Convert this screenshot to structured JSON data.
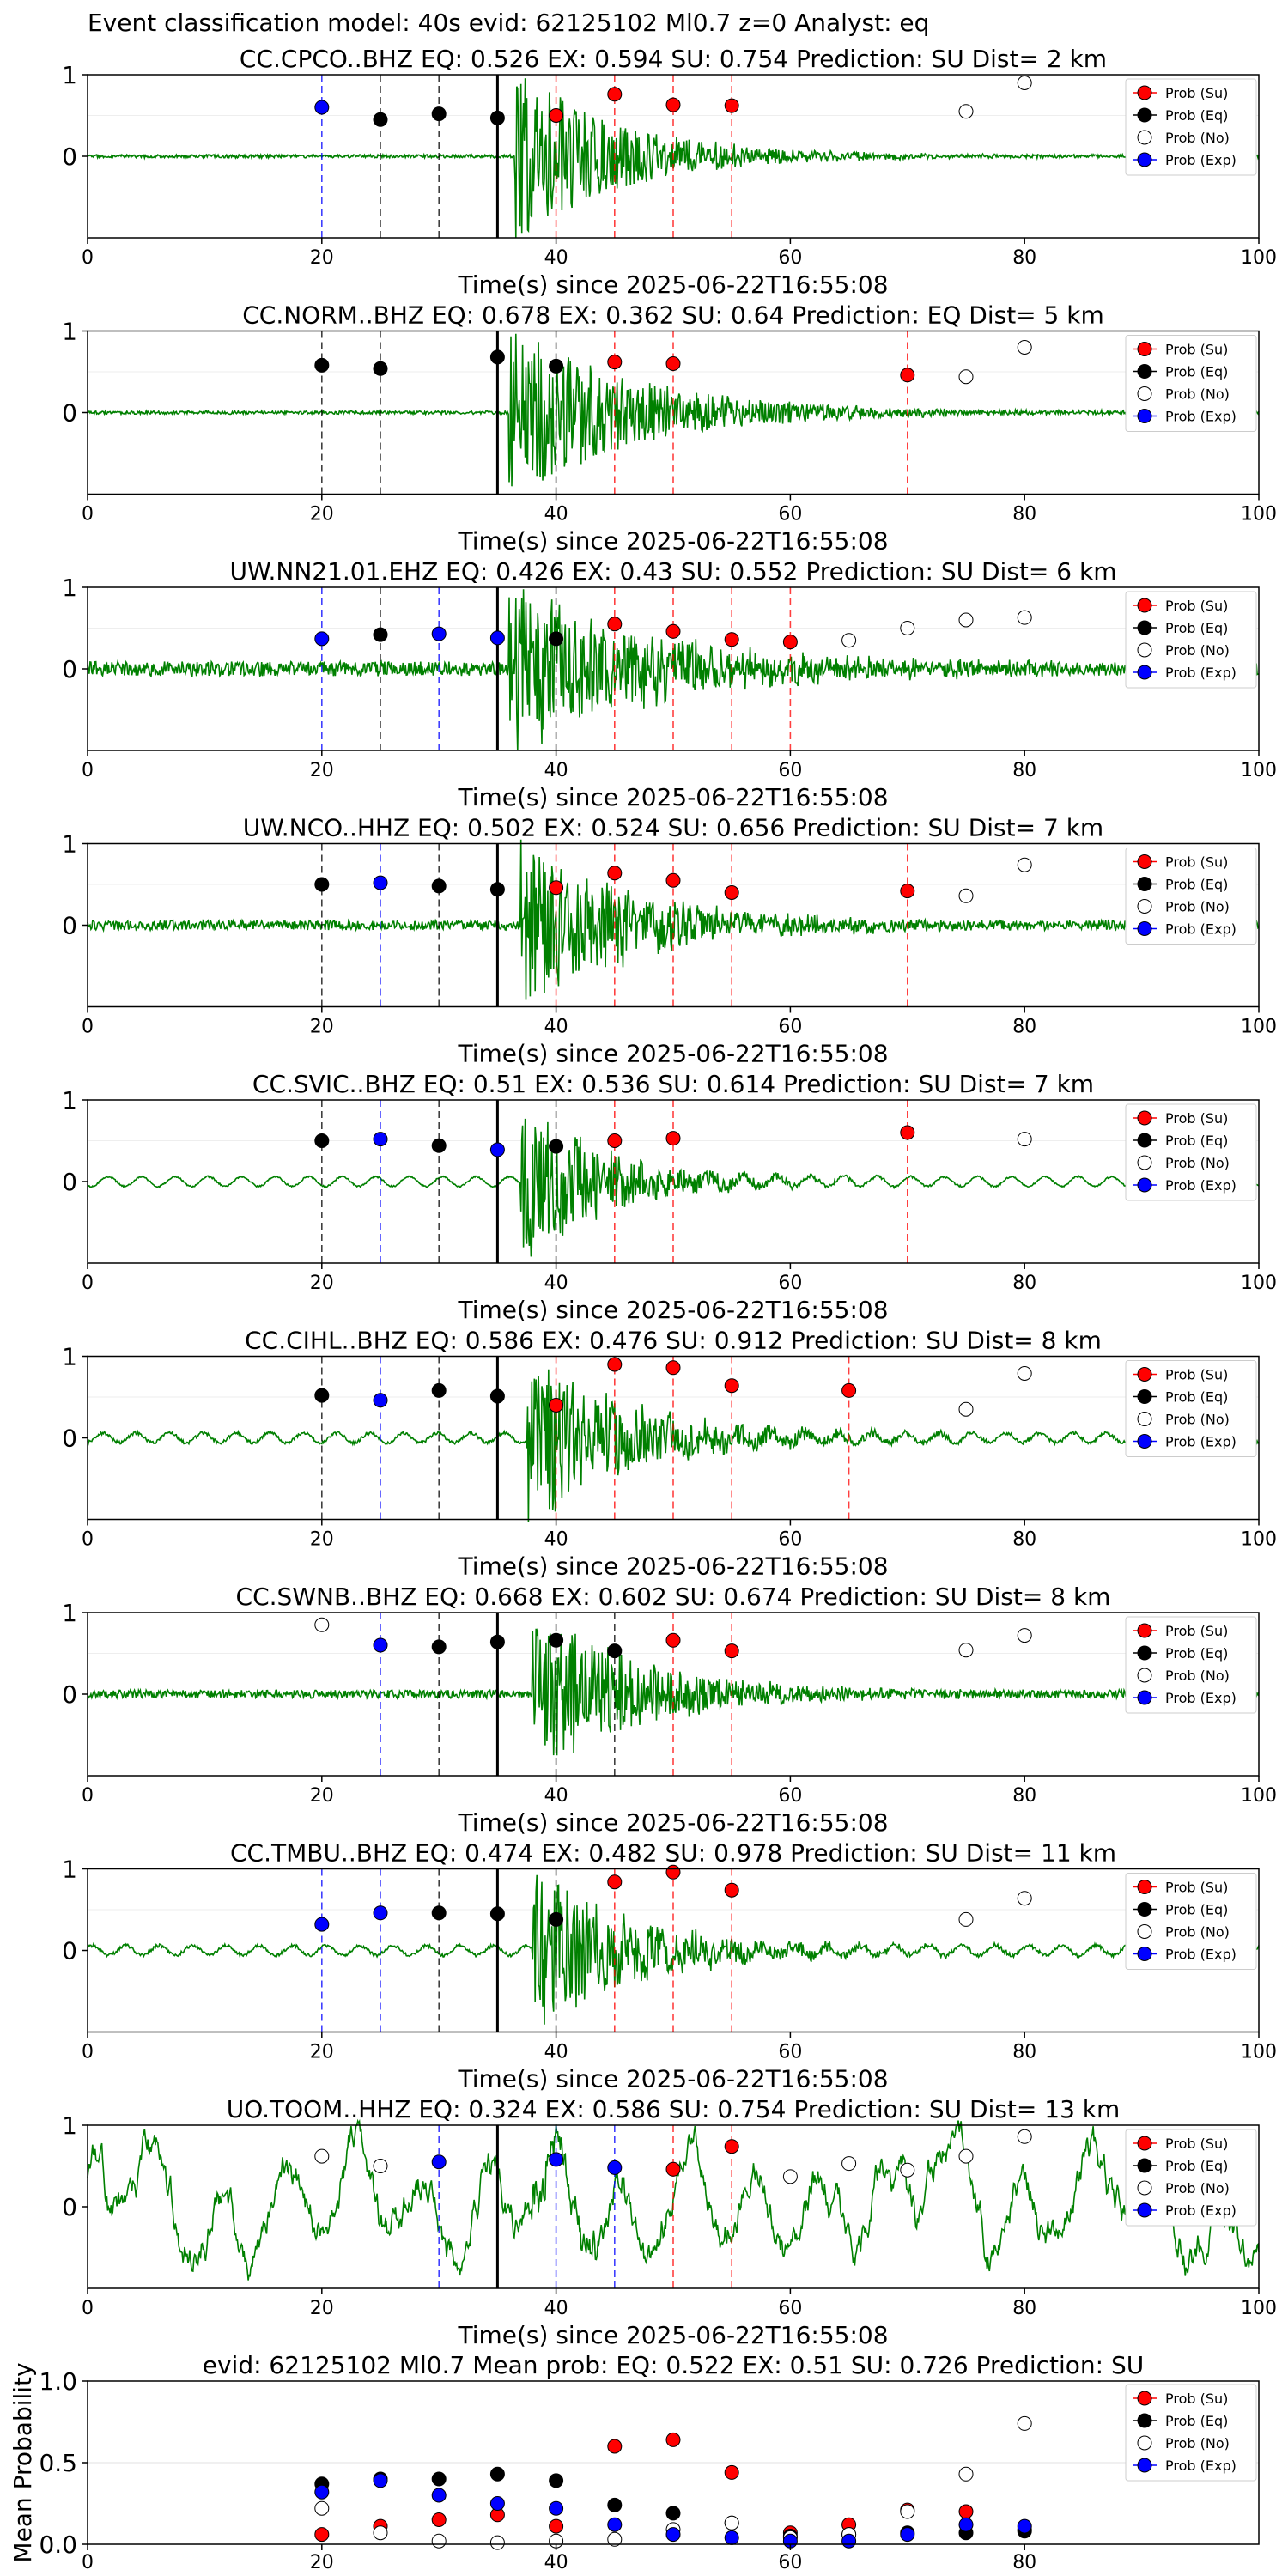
{
  "figure": {
    "suptitle": "Event classification model: 40s evid: 62125102 Ml0.7 z=0 Analyst: eq"
  },
  "legend": [
    "Prob (Su)",
    "Prob (Eq)",
    "Prob (No)",
    "Prob (Exp)"
  ],
  "colors": {
    "su": "#ff0000",
    "eq": "#000000",
    "no": "#ffffff",
    "exp": "#0000ff",
    "trace": "#008000"
  },
  "chart_data": [
    {
      "type": "scatter",
      "title": "CC.CPCO..BHZ   EQ: 0.526  EX: 0.594  SU: 0.754   Prediction: SU    Dist= 2 km",
      "xlabel": "Time(s) since 2025-06-22T16:55:08",
      "xlim": [
        0,
        100
      ],
      "ylim": [
        -1,
        1
      ],
      "xticks": [
        "0",
        "20",
        "40",
        "60",
        "80",
        "100"
      ],
      "yticks": [
        "0",
        "1"
      ],
      "pick_time": 35,
      "amp_scale": 1.0,
      "noise_level": 0.02,
      "onset": 36.5,
      "decay": 9,
      "bg": "noise",
      "windows": [
        {
          "t": 20,
          "class": "exp",
          "p": 0.6
        },
        {
          "t": 25,
          "class": "eq",
          "p": 0.45
        },
        {
          "t": 30,
          "class": "eq",
          "p": 0.52
        },
        {
          "t": 35,
          "class": "eq",
          "p": 0.47
        },
        {
          "t": 40,
          "class": "su",
          "p": 0.5
        },
        {
          "t": 45,
          "class": "su",
          "p": 0.76
        },
        {
          "t": 50,
          "class": "su",
          "p": 0.63
        },
        {
          "t": 55,
          "class": "su",
          "p": 0.62
        }
      ],
      "noise_points": [
        {
          "t": 75,
          "p": 0.55
        },
        {
          "t": 80,
          "p": 0.9
        }
      ]
    },
    {
      "type": "scatter",
      "title": "CC.NORM..BHZ   EQ: 0.678  EX: 0.362  SU: 0.64   Prediction: EQ    Dist= 5 km",
      "xlabel": "Time(s) since 2025-06-22T16:55:08",
      "xlim": [
        0,
        100
      ],
      "ylim": [
        -1,
        1
      ],
      "xticks": [
        "0",
        "20",
        "40",
        "60",
        "80",
        "100"
      ],
      "yticks": [
        "0",
        "1"
      ],
      "pick_time": 35,
      "amp_scale": 1.0,
      "noise_level": 0.02,
      "onset": 36,
      "decay": 11,
      "bg": "noise",
      "windows": [
        {
          "t": 20,
          "class": "eq",
          "p": 0.58
        },
        {
          "t": 25,
          "class": "eq",
          "p": 0.54
        },
        {
          "t": 35,
          "class": "eq",
          "p": 0.68
        },
        {
          "t": 40,
          "class": "eq",
          "p": 0.57
        },
        {
          "t": 45,
          "class": "su",
          "p": 0.62
        },
        {
          "t": 50,
          "class": "su",
          "p": 0.6
        },
        {
          "t": 70,
          "class": "su",
          "p": 0.46
        }
      ],
      "noise_points": [
        {
          "t": 75,
          "p": 0.44
        },
        {
          "t": 80,
          "p": 0.8
        }
      ]
    },
    {
      "type": "scatter",
      "title": "UW.NN21.01.EHZ   EQ: 0.426  EX: 0.43  SU: 0.552   Prediction: SU    Dist= 6 km",
      "xlabel": "Time(s) since 2025-06-22T16:55:08",
      "xlim": [
        0,
        100
      ],
      "ylim": [
        -1,
        1
      ],
      "xticks": [
        "0",
        "20",
        "40",
        "60",
        "80",
        "100"
      ],
      "yticks": [
        "0",
        "1"
      ],
      "pick_time": 35,
      "amp_scale": 1.0,
      "noise_level": 0.09,
      "onset": 36,
      "decay": 12,
      "bg": "noise",
      "windows": [
        {
          "t": 20,
          "class": "exp",
          "p": 0.37
        },
        {
          "t": 25,
          "class": "eq",
          "p": 0.42
        },
        {
          "t": 30,
          "class": "exp",
          "p": 0.43
        },
        {
          "t": 35,
          "class": "exp",
          "p": 0.38
        },
        {
          "t": 40,
          "class": "eq",
          "p": 0.37
        },
        {
          "t": 45,
          "class": "su",
          "p": 0.55
        },
        {
          "t": 50,
          "class": "su",
          "p": 0.46
        },
        {
          "t": 55,
          "class": "su",
          "p": 0.36
        },
        {
          "t": 60,
          "class": "su",
          "p": 0.33
        }
      ],
      "noise_points": [
        {
          "t": 65,
          "p": 0.35
        },
        {
          "t": 70,
          "p": 0.5
        },
        {
          "t": 75,
          "p": 0.6
        },
        {
          "t": 80,
          "p": 0.63
        }
      ]
    },
    {
      "type": "scatter",
      "title": "UW.NCO..HHZ   EQ: 0.502  EX: 0.524  SU: 0.656   Prediction: SU    Dist= 7 km",
      "xlabel": "Time(s) since 2025-06-22T16:55:08",
      "xlim": [
        0,
        100
      ],
      "ylim": [
        -1,
        1
      ],
      "xticks": [
        "0",
        "20",
        "40",
        "60",
        "80",
        "100"
      ],
      "yticks": [
        "0",
        "1"
      ],
      "pick_time": 35,
      "amp_scale": 1.0,
      "noise_level": 0.06,
      "onset": 37,
      "decay": 10,
      "bg": "noise",
      "windows": [
        {
          "t": 20,
          "class": "eq",
          "p": 0.5
        },
        {
          "t": 25,
          "class": "exp",
          "p": 0.52
        },
        {
          "t": 30,
          "class": "eq",
          "p": 0.48
        },
        {
          "t": 35,
          "class": "eq",
          "p": 0.44
        },
        {
          "t": 40,
          "class": "su",
          "p": 0.46
        },
        {
          "t": 45,
          "class": "su",
          "p": 0.64
        },
        {
          "t": 50,
          "class": "su",
          "p": 0.55
        },
        {
          "t": 55,
          "class": "su",
          "p": 0.4
        },
        {
          "t": 70,
          "class": "su",
          "p": 0.42
        }
      ],
      "noise_points": [
        {
          "t": 75,
          "p": 0.36
        },
        {
          "t": 80,
          "p": 0.74
        }
      ]
    },
    {
      "type": "scatter",
      "title": "CC.SVIC..BHZ   EQ: 0.51  EX: 0.536  SU: 0.614   Prediction: SU    Dist= 7 km",
      "xlabel": "Time(s) since 2025-06-22T16:55:08",
      "xlim": [
        0,
        100
      ],
      "ylim": [
        -1,
        1
      ],
      "xticks": [
        "0",
        "20",
        "40",
        "60",
        "80",
        "100"
      ],
      "yticks": [
        "0",
        "1"
      ],
      "pick_time": 35,
      "amp_scale": 0.95,
      "noise_level": 0.02,
      "onset": 37,
      "decay": 7,
      "bg": "wave",
      "windows": [
        {
          "t": 20,
          "class": "eq",
          "p": 0.5
        },
        {
          "t": 25,
          "class": "exp",
          "p": 0.52
        },
        {
          "t": 30,
          "class": "eq",
          "p": 0.44
        },
        {
          "t": 35,
          "class": "exp",
          "p": 0.39
        },
        {
          "t": 40,
          "class": "eq",
          "p": 0.43
        },
        {
          "t": 45,
          "class": "su",
          "p": 0.5
        },
        {
          "t": 50,
          "class": "su",
          "p": 0.53
        },
        {
          "t": 70,
          "class": "su",
          "p": 0.6
        }
      ],
      "noise_points": [
        {
          "t": 80,
          "p": 0.52
        }
      ]
    },
    {
      "type": "scatter",
      "title": "CC.CIHL..BHZ   EQ: 0.586  EX: 0.476  SU: 0.912   Prediction: SU    Dist= 8 km",
      "xlabel": "Time(s) since 2025-06-22T16:55:08",
      "xlim": [
        0,
        100
      ],
      "ylim": [
        -1,
        1
      ],
      "xticks": [
        "0",
        "20",
        "40",
        "60",
        "80",
        "100"
      ],
      "yticks": [
        "0",
        "1"
      ],
      "pick_time": 35,
      "amp_scale": 1.0,
      "noise_level": 0.04,
      "onset": 37.5,
      "decay": 9,
      "bg": "wave",
      "windows": [
        {
          "t": 20,
          "class": "eq",
          "p": 0.52
        },
        {
          "t": 25,
          "class": "exp",
          "p": 0.46
        },
        {
          "t": 30,
          "class": "eq",
          "p": 0.58
        },
        {
          "t": 35,
          "class": "eq",
          "p": 0.51
        },
        {
          "t": 40,
          "class": "su",
          "p": 0.4
        },
        {
          "t": 45,
          "class": "su",
          "p": 0.9
        },
        {
          "t": 50,
          "class": "su",
          "p": 0.86
        },
        {
          "t": 55,
          "class": "su",
          "p": 0.64
        },
        {
          "t": 65,
          "class": "su",
          "p": 0.58
        }
      ],
      "noise_points": [
        {
          "t": 75,
          "p": 0.35
        },
        {
          "t": 80,
          "p": 0.79
        }
      ]
    },
    {
      "type": "scatter",
      "title": "CC.SWNB..BHZ   EQ: 0.668  EX: 0.602  SU: 0.674   Prediction: SU    Dist= 8 km",
      "xlabel": "Time(s) since 2025-06-22T16:55:08",
      "xlim": [
        0,
        100
      ],
      "ylim": [
        -1,
        1
      ],
      "xticks": [
        "0",
        "20",
        "40",
        "60",
        "80",
        "100"
      ],
      "yticks": [
        "0",
        "1"
      ],
      "pick_time": 35,
      "amp_scale": 1.0,
      "noise_level": 0.05,
      "onset": 38,
      "decay": 9,
      "bg": "noise",
      "windows": [
        {
          "t": 25,
          "class": "exp",
          "p": 0.6
        },
        {
          "t": 30,
          "class": "eq",
          "p": 0.58
        },
        {
          "t": 35,
          "class": "eq",
          "p": 0.64
        },
        {
          "t": 40,
          "class": "eq",
          "p": 0.66
        },
        {
          "t": 45,
          "class": "eq",
          "p": 0.53
        },
        {
          "t": 50,
          "class": "su",
          "p": 0.66
        },
        {
          "t": 55,
          "class": "su",
          "p": 0.53
        }
      ],
      "noise_points": [
        {
          "t": 20,
          "p": 0.85
        },
        {
          "t": 75,
          "p": 0.54
        },
        {
          "t": 80,
          "p": 0.72
        }
      ]
    },
    {
      "type": "scatter",
      "title": "CC.TMBU..BHZ   EQ: 0.474  EX: 0.482  SU: 0.978   Prediction: SU    Dist= 11 km",
      "xlabel": "Time(s) since 2025-06-22T16:55:08",
      "xlim": [
        0,
        100
      ],
      "ylim": [
        -1,
        1
      ],
      "xticks": [
        "0",
        "20",
        "40",
        "60",
        "80",
        "100"
      ],
      "yticks": [
        "0",
        "1"
      ],
      "pick_time": 35,
      "amp_scale": 0.9,
      "noise_level": 0.04,
      "onset": 38,
      "decay": 9,
      "bg": "wave",
      "windows": [
        {
          "t": 20,
          "class": "exp",
          "p": 0.32
        },
        {
          "t": 25,
          "class": "exp",
          "p": 0.46
        },
        {
          "t": 30,
          "class": "eq",
          "p": 0.46
        },
        {
          "t": 35,
          "class": "eq",
          "p": 0.45
        },
        {
          "t": 40,
          "class": "eq",
          "p": 0.38
        },
        {
          "t": 45,
          "class": "su",
          "p": 0.84
        },
        {
          "t": 50,
          "class": "su",
          "p": 0.96
        },
        {
          "t": 55,
          "class": "su",
          "p": 0.74
        }
      ],
      "noise_points": [
        {
          "t": 75,
          "p": 0.38
        },
        {
          "t": 80,
          "p": 0.64
        }
      ]
    },
    {
      "type": "scatter",
      "title": "UO.TOOM..HHZ   EQ: 0.324  EX: 0.586  SU: 0.754   Prediction: SU    Dist= 13 km",
      "xlabel": "Time(s) since 2025-06-22T16:55:08",
      "xlim": [
        0,
        100
      ],
      "ylim": [
        -1,
        1
      ],
      "xticks": [
        "0",
        "20",
        "40",
        "60",
        "80",
        "100"
      ],
      "yticks": [
        "0",
        "1"
      ],
      "pick_time": 35,
      "amp_scale": 0.2,
      "noise_level": 0.55,
      "onset": 38,
      "decay": 6,
      "bg": "long",
      "windows": [
        {
          "t": 30,
          "class": "exp",
          "p": 0.55
        },
        {
          "t": 40,
          "class": "exp",
          "p": 0.58
        },
        {
          "t": 45,
          "class": "exp",
          "p": 0.48
        },
        {
          "t": 50,
          "class": "su",
          "p": 0.46
        },
        {
          "t": 55,
          "class": "su",
          "p": 0.74
        }
      ],
      "noise_points": [
        {
          "t": 20,
          "p": 0.62
        },
        {
          "t": 25,
          "p": 0.5
        },
        {
          "t": 60,
          "p": 0.37
        },
        {
          "t": 65,
          "p": 0.53
        },
        {
          "t": 70,
          "p": 0.45
        },
        {
          "t": 75,
          "p": 0.62
        },
        {
          "t": 80,
          "p": 0.86
        }
      ]
    },
    {
      "type": "scatter",
      "title": "evid: 62125102  Ml0.7   Mean prob:   EQ: 0.522  EX: 0.51  SU: 0.726   Prediction: SU",
      "xlabel": "",
      "ylabel": "Mean Probability",
      "xlim": [
        0,
        100
      ],
      "ylim": [
        0,
        1
      ],
      "xticks": [
        "0",
        "20",
        "40",
        "60",
        "80"
      ],
      "yticks": [
        "0.0",
        "0.5",
        "1.0"
      ],
      "x": [
        20,
        25,
        30,
        35,
        40,
        45,
        50,
        55,
        60,
        65,
        70,
        75,
        80
      ],
      "series": [
        {
          "name": "Prob (Su)",
          "values": [
            0.06,
            0.11,
            0.15,
            0.18,
            0.11,
            0.6,
            0.64,
            0.44,
            0.07,
            0.12,
            0.21,
            0.2,
            0.09
          ]
        },
        {
          "name": "Prob (Eq)",
          "values": [
            0.37,
            0.4,
            0.4,
            0.43,
            0.39,
            0.24,
            0.19,
            0.13,
            0.05,
            0.06,
            0.07,
            0.07,
            0.08
          ]
        },
        {
          "name": "Prob (No)",
          "values": [
            0.22,
            0.07,
            0.02,
            0.01,
            0.02,
            0.03,
            0.09,
            0.13,
            0.04,
            0.06,
            0.2,
            0.43,
            0.74
          ]
        },
        {
          "name": "Prob (Exp)",
          "values": [
            0.32,
            0.39,
            0.3,
            0.25,
            0.22,
            0.12,
            0.06,
            0.04,
            0.02,
            0.02,
            0.06,
            0.12,
            0.11
          ]
        }
      ]
    }
  ]
}
